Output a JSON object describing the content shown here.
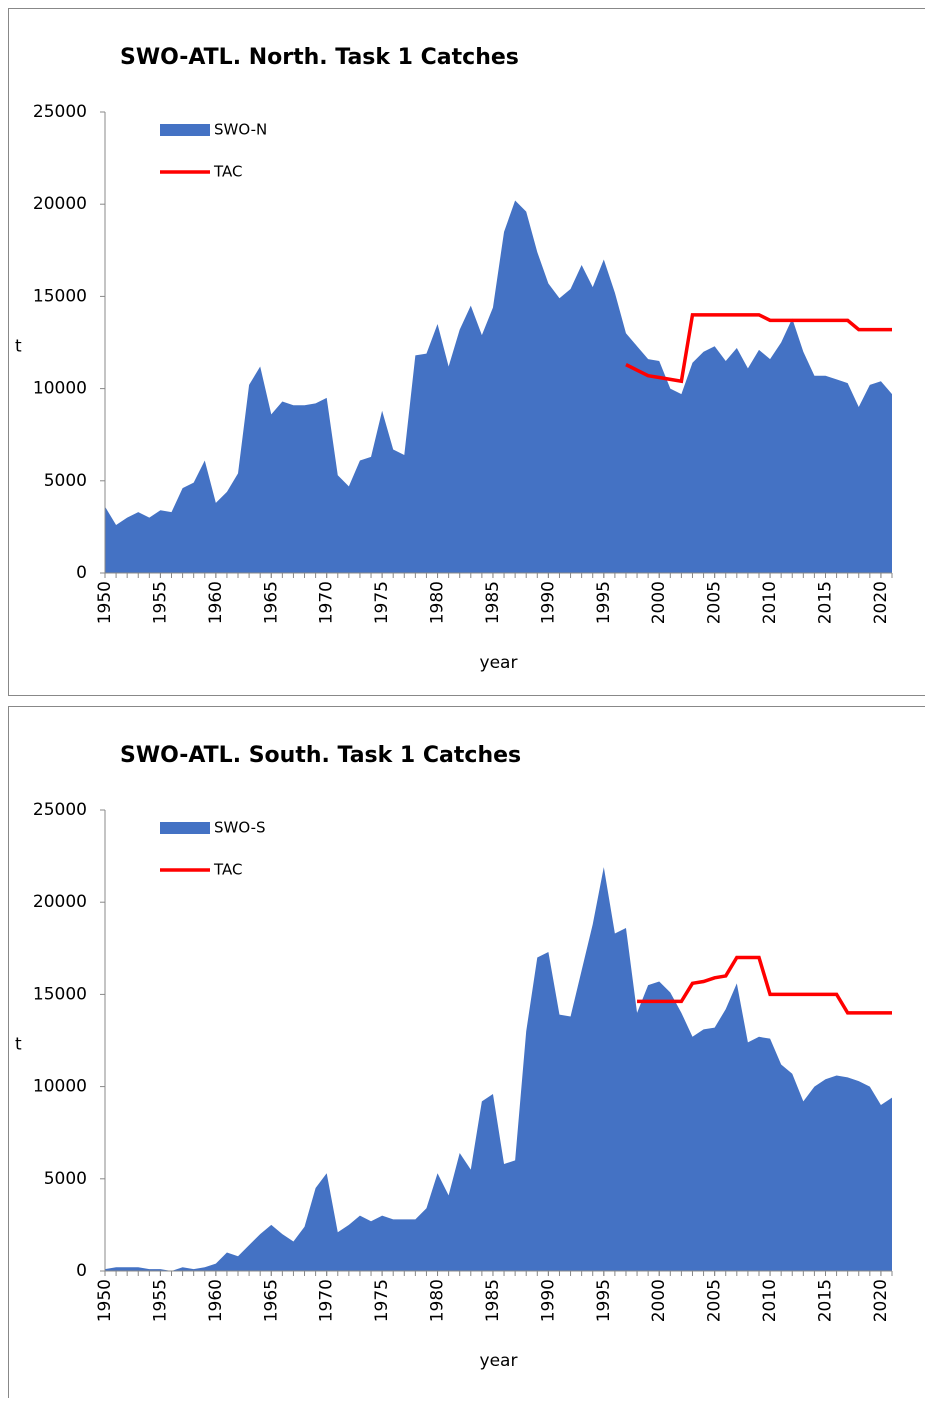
{
  "chart_data": [
    {
      "type": "area",
      "title": "SWO-ATL. North. Task 1 Catches",
      "ylabel": "t",
      "xlabel": "year",
      "x": [
        1950,
        1951,
        1952,
        1953,
        1954,
        1955,
        1956,
        1957,
        1958,
        1959,
        1960,
        1961,
        1962,
        1963,
        1964,
        1965,
        1966,
        1967,
        1968,
        1969,
        1970,
        1971,
        1972,
        1973,
        1974,
        1975,
        1976,
        1977,
        1978,
        1979,
        1980,
        1981,
        1982,
        1983,
        1984,
        1985,
        1986,
        1987,
        1988,
        1989,
        1990,
        1991,
        1992,
        1993,
        1994,
        1995,
        1996,
        1997,
        1998,
        1999,
        2000,
        2001,
        2002,
        2003,
        2004,
        2005,
        2006,
        2007,
        2008,
        2009,
        2010,
        2011,
        2012,
        2013,
        2014,
        2015,
        2016,
        2017,
        2018,
        2019,
        2020,
        2021
      ],
      "series": [
        {
          "name": "SWO-N",
          "type": "area",
          "color": "#4472c4",
          "values": [
            3600,
            2600,
            3000,
            3300,
            3000,
            3400,
            3300,
            4600,
            4900,
            6100,
            3800,
            4400,
            5400,
            10200,
            11200,
            8600,
            9300,
            9100,
            9100,
            9200,
            9500,
            5300,
            4700,
            6100,
            6300,
            8800,
            6700,
            6400,
            11800,
            11900,
            13500,
            11200,
            13200,
            14500,
            12900,
            14400,
            18500,
            20200,
            19600,
            17400,
            15700,
            14900,
            15400,
            16700,
            15500,
            17000,
            15200,
            13000,
            12300,
            11600,
            11500,
            10000,
            9700,
            11400,
            12000,
            12300,
            11500,
            12200,
            11100,
            12100,
            11600,
            12500,
            13800,
            12000,
            10700,
            10700,
            10500,
            10300,
            9000,
            10200,
            10400,
            9700
          ]
        },
        {
          "name": "TAC",
          "type": "line",
          "color": "#ff0000",
          "values": [
            null,
            null,
            null,
            null,
            null,
            null,
            null,
            null,
            null,
            null,
            null,
            null,
            null,
            null,
            null,
            null,
            null,
            null,
            null,
            null,
            null,
            null,
            null,
            null,
            null,
            null,
            null,
            null,
            null,
            null,
            null,
            null,
            null,
            null,
            null,
            null,
            null,
            null,
            null,
            null,
            null,
            null,
            null,
            null,
            null,
            null,
            null,
            11300,
            11000,
            10700,
            10600,
            10500,
            10400,
            14000,
            14000,
            14000,
            14000,
            14000,
            14000,
            14000,
            13700,
            13700,
            13700,
            13700,
            13700,
            13700,
            13700,
            13700,
            13200,
            13200,
            13200,
            13200
          ]
        }
      ],
      "xlim": [
        1950,
        2021
      ],
      "xticks": [
        1950,
        1955,
        1960,
        1965,
        1970,
        1975,
        1980,
        1985,
        1990,
        1995,
        2000,
        2005,
        2010,
        2015,
        2020
      ],
      "ylim": [
        0,
        25000
      ],
      "yticks": [
        0,
        5000,
        10000,
        15000,
        20000,
        25000
      ],
      "legend": "top-left"
    },
    {
      "type": "area",
      "title": "SWO-ATL. South. Task 1 Catches",
      "ylabel": "t",
      "xlabel": "year",
      "x": [
        1950,
        1951,
        1952,
        1953,
        1954,
        1955,
        1956,
        1957,
        1958,
        1959,
        1960,
        1961,
        1962,
        1963,
        1964,
        1965,
        1966,
        1967,
        1968,
        1969,
        1970,
        1971,
        1972,
        1973,
        1974,
        1975,
        1976,
        1977,
        1978,
        1979,
        1980,
        1981,
        1982,
        1983,
        1984,
        1985,
        1986,
        1987,
        1988,
        1989,
        1990,
        1991,
        1992,
        1993,
        1994,
        1995,
        1996,
        1997,
        1998,
        1999,
        2000,
        2001,
        2002,
        2003,
        2004,
        2005,
        2006,
        2007,
        2008,
        2009,
        2010,
        2011,
        2012,
        2013,
        2014,
        2015,
        2016,
        2017,
        2018,
        2019,
        2020,
        2021
      ],
      "series": [
        {
          "name": "SWO-S",
          "type": "area",
          "color": "#4472c4",
          "values": [
            100,
            200,
            200,
            200,
            100,
            100,
            0,
            200,
            100,
            200,
            400,
            1000,
            800,
            1400,
            2000,
            2500,
            2000,
            1600,
            2400,
            4500,
            5300,
            2100,
            2500,
            3000,
            2700,
            3000,
            2800,
            2800,
            2800,
            3400,
            5300,
            4100,
            6400,
            5500,
            9200,
            9600,
            5800,
            6000,
            13000,
            17000,
            17300,
            13900,
            13800,
            16300,
            18800,
            21900,
            18300,
            18600,
            14000,
            15500,
            15700,
            15100,
            14000,
            12700,
            13100,
            13200,
            14200,
            15600,
            12400,
            12700,
            12600,
            11200,
            10700,
            9200,
            10000,
            10400,
            10600,
            10500,
            10300,
            10000,
            9000,
            9400
          ]
        },
        {
          "name": "TAC",
          "type": "line",
          "color": "#ff0000",
          "values": [
            null,
            null,
            null,
            null,
            null,
            null,
            null,
            null,
            null,
            null,
            null,
            null,
            null,
            null,
            null,
            null,
            null,
            null,
            null,
            null,
            null,
            null,
            null,
            null,
            null,
            null,
            null,
            null,
            null,
            null,
            null,
            null,
            null,
            null,
            null,
            null,
            null,
            null,
            null,
            null,
            null,
            null,
            null,
            null,
            null,
            null,
            null,
            null,
            14620,
            14620,
            14620,
            14620,
            14620,
            15600,
            15700,
            15900,
            16000,
            17000,
            17000,
            17000,
            15000,
            15000,
            15000,
            15000,
            15000,
            15000,
            15000,
            14000,
            14000,
            14000,
            14000,
            14000
          ]
        }
      ],
      "xlim": [
        1950,
        2021
      ],
      "xticks": [
        1950,
        1955,
        1960,
        1965,
        1970,
        1975,
        1980,
        1985,
        1990,
        1995,
        2000,
        2005,
        2010,
        2015,
        2020
      ],
      "ylim": [
        0,
        25000
      ],
      "yticks": [
        0,
        5000,
        10000,
        15000,
        20000,
        25000
      ],
      "legend": "top-left"
    }
  ]
}
